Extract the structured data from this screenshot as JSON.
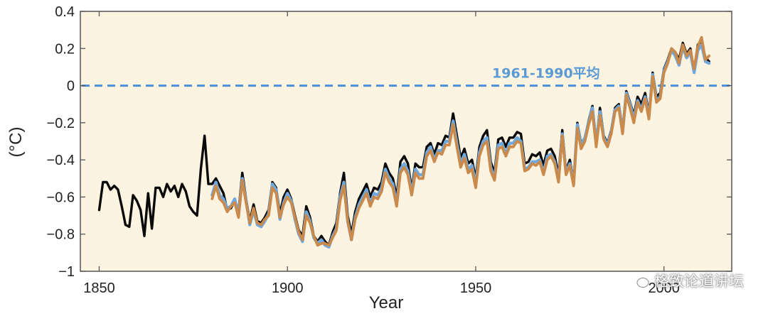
{
  "chart_data": {
    "type": "line",
    "title": "",
    "xlabel": "Year",
    "ylabel": "(°C)",
    "xlim": [
      1845,
      2018
    ],
    "ylim": [
      -1.0,
      0.4
    ],
    "xticks": [
      1850,
      1900,
      1950,
      2000
    ],
    "yticks": [
      {
        "value": 0.4,
        "label": "0.4"
      },
      {
        "value": 0.2,
        "label": "0.2"
      },
      {
        "value": 0.0,
        "label": "0"
      },
      {
        "value": -0.2,
        "label": "−0.2"
      },
      {
        "value": -0.4,
        "label": "−0.4"
      },
      {
        "value": -0.6,
        "label": "−0.6"
      },
      {
        "value": -0.8,
        "label": "−0.8"
      },
      {
        "value": -1.0,
        "label": "−1"
      }
    ],
    "reference_line": {
      "value": 0.0,
      "label": "1961-1990平均",
      "label_x": 1983,
      "color": "#4a90d9"
    },
    "background": "#fcf3e0",
    "series": [
      {
        "name": "black",
        "color": "#0a0a0a",
        "x": [
          1850,
          1851,
          1852,
          1853,
          1854,
          1855,
          1856,
          1857,
          1858,
          1859,
          1860,
          1861,
          1862,
          1863,
          1864,
          1865,
          1866,
          1867,
          1868,
          1869,
          1870,
          1871,
          1872,
          1873,
          1874,
          1875,
          1876,
          1877,
          1878,
          1879,
          1880,
          1881,
          1882,
          1883,
          1884,
          1885,
          1886,
          1887,
          1888,
          1889,
          1890,
          1891,
          1892,
          1893,
          1894,
          1895,
          1896,
          1897,
          1898,
          1899,
          1900,
          1901,
          1902,
          1903,
          1904,
          1905,
          1906,
          1907,
          1908,
          1909,
          1910,
          1911,
          1912,
          1913,
          1914,
          1915,
          1916,
          1917,
          1918,
          1919,
          1920,
          1921,
          1922,
          1923,
          1924,
          1925,
          1926,
          1927,
          1928,
          1929,
          1930,
          1931,
          1932,
          1933,
          1934,
          1935,
          1936,
          1937,
          1938,
          1939,
          1940,
          1941,
          1942,
          1943,
          1944,
          1945,
          1946,
          1947,
          1948,
          1949,
          1950,
          1951,
          1952,
          1953,
          1954,
          1955,
          1956,
          1957,
          1958,
          1959,
          1960,
          1961,
          1962,
          1963,
          1964,
          1965,
          1966,
          1967,
          1968,
          1969,
          1970,
          1971,
          1972,
          1973,
          1974,
          1975,
          1976,
          1977,
          1978,
          1979,
          1980,
          1981,
          1982,
          1983,
          1984,
          1985,
          1986,
          1987,
          1988,
          1989,
          1990,
          1991,
          1992,
          1993,
          1994,
          1995,
          1996,
          1997,
          1998,
          1999,
          2000,
          2001,
          2002,
          2003,
          2004,
          2005,
          2006,
          2007,
          2008,
          2009,
          2010,
          2011,
          2012
        ],
        "y": [
          -0.67,
          -0.52,
          -0.52,
          -0.56,
          -0.54,
          -0.56,
          -0.65,
          -0.75,
          -0.76,
          -0.59,
          -0.62,
          -0.67,
          -0.81,
          -0.58,
          -0.77,
          -0.55,
          -0.55,
          -0.6,
          -0.53,
          -0.57,
          -0.54,
          -0.6,
          -0.53,
          -0.57,
          -0.65,
          -0.68,
          -0.7,
          -0.45,
          -0.27,
          -0.53,
          -0.53,
          -0.5,
          -0.54,
          -0.58,
          -0.67,
          -0.66,
          -0.62,
          -0.68,
          -0.47,
          -0.61,
          -0.73,
          -0.64,
          -0.73,
          -0.74,
          -0.71,
          -0.67,
          -0.52,
          -0.55,
          -0.69,
          -0.6,
          -0.56,
          -0.61,
          -0.7,
          -0.78,
          -0.81,
          -0.65,
          -0.71,
          -0.81,
          -0.84,
          -0.81,
          -0.84,
          -0.86,
          -0.79,
          -0.74,
          -0.58,
          -0.47,
          -0.7,
          -0.8,
          -0.68,
          -0.61,
          -0.57,
          -0.53,
          -0.6,
          -0.55,
          -0.56,
          -0.52,
          -0.42,
          -0.47,
          -0.5,
          -0.6,
          -0.41,
          -0.38,
          -0.42,
          -0.56,
          -0.42,
          -0.44,
          -0.44,
          -0.33,
          -0.31,
          -0.37,
          -0.31,
          -0.32,
          -0.27,
          -0.28,
          -0.15,
          -0.27,
          -0.39,
          -0.34,
          -0.42,
          -0.4,
          -0.5,
          -0.33,
          -0.27,
          -0.24,
          -0.41,
          -0.47,
          -0.29,
          -0.28,
          -0.33,
          -0.28,
          -0.28,
          -0.25,
          -0.26,
          -0.42,
          -0.41,
          -0.37,
          -0.38,
          -0.36,
          -0.43,
          -0.35,
          -0.34,
          -0.38,
          -0.48,
          -0.24,
          -0.46,
          -0.4,
          -0.52,
          -0.2,
          -0.31,
          -0.28,
          -0.19,
          -0.11,
          -0.31,
          -0.12,
          -0.27,
          -0.31,
          -0.24,
          -0.12,
          -0.1,
          -0.24,
          -0.03,
          -0.09,
          -0.16,
          -0.06,
          -0.1,
          -0.04,
          -0.15,
          0.07,
          -0.06,
          -0.04,
          0.09,
          0.14,
          0.2,
          0.18,
          0.14,
          0.23,
          0.17,
          0.2,
          0.08,
          0.22,
          0.24,
          0.15,
          0.13
        ]
      },
      {
        "name": "blue",
        "color": "#6fa8dc",
        "x": [
          1880,
          1881,
          1882,
          1883,
          1884,
          1885,
          1886,
          1887,
          1888,
          1889,
          1890,
          1891,
          1892,
          1893,
          1894,
          1895,
          1896,
          1897,
          1898,
          1899,
          1900,
          1901,
          1902,
          1903,
          1904,
          1905,
          1906,
          1907,
          1908,
          1909,
          1910,
          1911,
          1912,
          1913,
          1914,
          1915,
          1916,
          1917,
          1918,
          1919,
          1920,
          1921,
          1922,
          1923,
          1924,
          1925,
          1926,
          1927,
          1928,
          1929,
          1930,
          1931,
          1932,
          1933,
          1934,
          1935,
          1936,
          1937,
          1938,
          1939,
          1940,
          1941,
          1942,
          1943,
          1944,
          1945,
          1946,
          1947,
          1948,
          1949,
          1950,
          1951,
          1952,
          1953,
          1954,
          1955,
          1956,
          1957,
          1958,
          1959,
          1960,
          1961,
          1962,
          1963,
          1964,
          1965,
          1966,
          1967,
          1968,
          1969,
          1970,
          1971,
          1972,
          1973,
          1974,
          1975,
          1976,
          1977,
          1978,
          1979,
          1980,
          1981,
          1982,
          1983,
          1984,
          1985,
          1986,
          1987,
          1988,
          1989,
          1990,
          1991,
          1992,
          1993,
          1994,
          1995,
          1996,
          1997,
          1998,
          1999,
          2000,
          2001,
          2002,
          2003,
          2004,
          2005,
          2006,
          2007,
          2008,
          2009,
          2010,
          2011,
          2012
        ],
        "y": [
          -0.59,
          -0.52,
          -0.59,
          -0.61,
          -0.66,
          -0.65,
          -0.61,
          -0.7,
          -0.5,
          -0.62,
          -0.75,
          -0.67,
          -0.75,
          -0.76,
          -0.73,
          -0.69,
          -0.53,
          -0.56,
          -0.72,
          -0.63,
          -0.58,
          -0.62,
          -0.72,
          -0.8,
          -0.84,
          -0.68,
          -0.73,
          -0.82,
          -0.85,
          -0.83,
          -0.86,
          -0.87,
          -0.81,
          -0.77,
          -0.6,
          -0.52,
          -0.73,
          -0.83,
          -0.71,
          -0.64,
          -0.6,
          -0.56,
          -0.64,
          -0.58,
          -0.59,
          -0.55,
          -0.45,
          -0.5,
          -0.53,
          -0.64,
          -0.45,
          -0.42,
          -0.46,
          -0.58,
          -0.45,
          -0.48,
          -0.48,
          -0.36,
          -0.33,
          -0.4,
          -0.35,
          -0.35,
          -0.3,
          -0.3,
          -0.19,
          -0.31,
          -0.42,
          -0.37,
          -0.45,
          -0.43,
          -0.53,
          -0.36,
          -0.3,
          -0.28,
          -0.44,
          -0.5,
          -0.32,
          -0.31,
          -0.37,
          -0.31,
          -0.31,
          -0.28,
          -0.3,
          -0.45,
          -0.44,
          -0.41,
          -0.41,
          -0.4,
          -0.47,
          -0.38,
          -0.37,
          -0.41,
          -0.51,
          -0.26,
          -0.47,
          -0.42,
          -0.53,
          -0.21,
          -0.32,
          -0.28,
          -0.2,
          -0.12,
          -0.31,
          -0.14,
          -0.28,
          -0.32,
          -0.25,
          -0.13,
          -0.11,
          -0.25,
          -0.04,
          -0.1,
          -0.18,
          -0.08,
          -0.13,
          -0.06,
          -0.17,
          0.06,
          -0.08,
          -0.06,
          0.08,
          0.13,
          0.19,
          0.16,
          0.11,
          0.21,
          0.15,
          0.18,
          0.07,
          0.19,
          0.22,
          0.13,
          0.12
        ]
      },
      {
        "name": "orange",
        "color": "#c98a4b",
        "x": [
          1880,
          1881,
          1882,
          1883,
          1884,
          1885,
          1886,
          1887,
          1888,
          1889,
          1890,
          1891,
          1892,
          1893,
          1894,
          1895,
          1896,
          1897,
          1898,
          1899,
          1900,
          1901,
          1902,
          1903,
          1904,
          1905,
          1906,
          1907,
          1908,
          1909,
          1910,
          1911,
          1912,
          1913,
          1914,
          1915,
          1916,
          1917,
          1918,
          1919,
          1920,
          1921,
          1922,
          1923,
          1924,
          1925,
          1926,
          1927,
          1928,
          1929,
          1930,
          1931,
          1932,
          1933,
          1934,
          1935,
          1936,
          1937,
          1938,
          1939,
          1940,
          1941,
          1942,
          1943,
          1944,
          1945,
          1946,
          1947,
          1948,
          1949,
          1950,
          1951,
          1952,
          1953,
          1954,
          1955,
          1956,
          1957,
          1958,
          1959,
          1960,
          1961,
          1962,
          1963,
          1964,
          1965,
          1966,
          1967,
          1968,
          1969,
          1970,
          1971,
          1972,
          1973,
          1974,
          1975,
          1976,
          1977,
          1978,
          1979,
          1980,
          1981,
          1982,
          1983,
          1984,
          1985,
          1986,
          1987,
          1988,
          1989,
          1990,
          1991,
          1992,
          1993,
          1994,
          1995,
          1996,
          1997,
          1998,
          1999,
          2000,
          2001,
          2002,
          2003,
          2004,
          2005,
          2006,
          2007,
          2008,
          2009,
          2010,
          2011,
          2012
        ],
        "y": [
          -0.61,
          -0.54,
          -0.61,
          -0.63,
          -0.68,
          -0.65,
          -0.63,
          -0.71,
          -0.51,
          -0.63,
          -0.74,
          -0.66,
          -0.74,
          -0.75,
          -0.72,
          -0.7,
          -0.55,
          -0.58,
          -0.71,
          -0.64,
          -0.6,
          -0.63,
          -0.71,
          -0.79,
          -0.83,
          -0.7,
          -0.74,
          -0.81,
          -0.86,
          -0.85,
          -0.85,
          -0.86,
          -0.82,
          -0.78,
          -0.62,
          -0.54,
          -0.73,
          -0.83,
          -0.72,
          -0.66,
          -0.62,
          -0.58,
          -0.65,
          -0.6,
          -0.61,
          -0.57,
          -0.47,
          -0.52,
          -0.55,
          -0.65,
          -0.47,
          -0.44,
          -0.48,
          -0.59,
          -0.47,
          -0.5,
          -0.5,
          -0.38,
          -0.35,
          -0.41,
          -0.36,
          -0.37,
          -0.32,
          -0.32,
          -0.21,
          -0.33,
          -0.44,
          -0.39,
          -0.47,
          -0.45,
          -0.55,
          -0.38,
          -0.32,
          -0.3,
          -0.46,
          -0.51,
          -0.34,
          -0.33,
          -0.38,
          -0.33,
          -0.33,
          -0.3,
          -0.31,
          -0.46,
          -0.45,
          -0.42,
          -0.43,
          -0.41,
          -0.48,
          -0.4,
          -0.38,
          -0.42,
          -0.52,
          -0.27,
          -0.48,
          -0.43,
          -0.54,
          -0.23,
          -0.34,
          -0.3,
          -0.21,
          -0.14,
          -0.33,
          -0.16,
          -0.29,
          -0.33,
          -0.26,
          -0.14,
          -0.12,
          -0.26,
          -0.05,
          -0.12,
          -0.2,
          -0.09,
          -0.14,
          -0.07,
          -0.18,
          0.05,
          -0.09,
          -0.07,
          0.07,
          0.12,
          0.2,
          0.18,
          0.12,
          0.22,
          0.16,
          0.19,
          0.09,
          0.21,
          0.26,
          0.14,
          0.16
        ]
      }
    ]
  },
  "watermark": {
    "text": "格致论道讲坛"
  }
}
